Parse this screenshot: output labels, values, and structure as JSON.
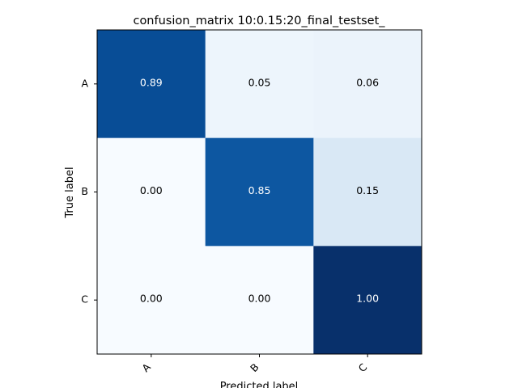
{
  "chart_data": {
    "type": "heatmap",
    "title": "confusion_matrix 10:0.15:20_final_testset_",
    "xlabel": "Predicted label",
    "ylabel": "True label",
    "x_categories": [
      "A",
      "B",
      "C"
    ],
    "y_categories": [
      "A",
      "B",
      "C"
    ],
    "values": [
      [
        0.89,
        0.05,
        0.06
      ],
      [
        0.0,
        0.85,
        0.15
      ],
      [
        0.0,
        0.0,
        1.0
      ]
    ],
    "value_format": "0.00",
    "colormap": "Blues",
    "vmin": 0.0,
    "vmax": 1.0,
    "x_tick_rotation": 45,
    "grid": false,
    "legend": "none",
    "colors": {
      "text_dark": "#000000",
      "text_light": "#ffffff",
      "axis": "#000000"
    }
  }
}
